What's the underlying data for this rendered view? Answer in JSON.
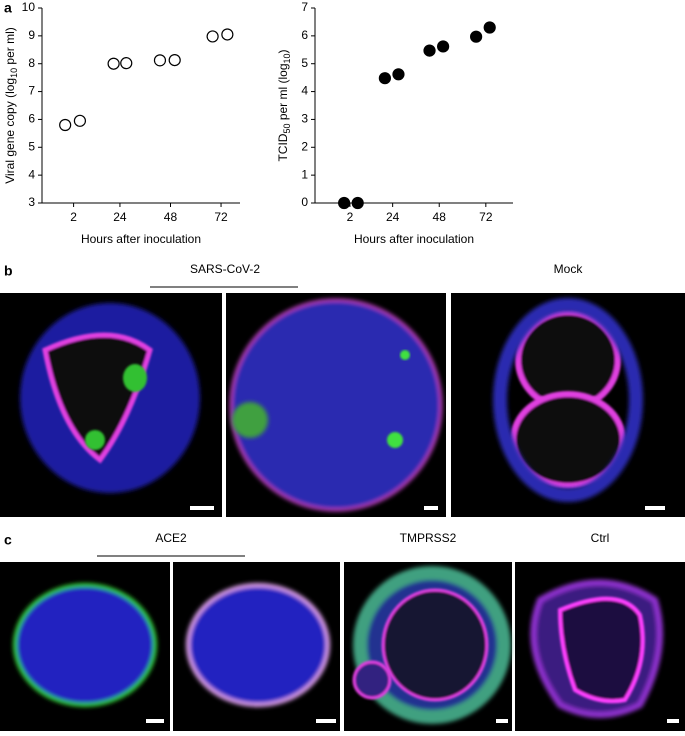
{
  "chart_data": [
    {
      "type": "scatter",
      "panel": "a",
      "ylabel": [
        "Viral gene copy (log",
        "10",
        " per ml)"
      ],
      "xlabel": "Hours after inoculation",
      "x": [
        -2,
        5,
        21,
        27,
        43,
        50,
        68,
        75
      ],
      "values": [
        5.8,
        5.95,
        8.0,
        8.02,
        8.12,
        8.13,
        8.98,
        9.05
      ],
      "color": "#000000",
      "filled": false,
      "xlim": [
        -13,
        81
      ],
      "xticks": [
        2,
        24,
        48,
        72
      ],
      "ylim": [
        3,
        10
      ],
      "yticks": [
        3,
        4,
        5,
        6,
        7,
        8,
        9,
        10
      ]
    },
    {
      "type": "scatter",
      "ylabel": [
        "TCID",
        "50",
        " per ml (log",
        "10",
        ")"
      ],
      "xlabel": "Hours after inoculation",
      "x": [
        -1,
        6,
        20,
        27,
        43,
        50,
        67,
        74
      ],
      "values": [
        0,
        0,
        4.48,
        4.62,
        5.47,
        5.62,
        5.97,
        6.3
      ],
      "color": "#000000",
      "filled": true,
      "xlim": [
        -16,
        86
      ],
      "xticks": [
        2,
        24,
        48,
        72
      ],
      "ylim": [
        0,
        7
      ],
      "yticks": [
        0,
        1,
        2,
        3,
        4,
        5,
        6,
        7
      ]
    }
  ],
  "panels": {
    "b": {
      "label": "b",
      "headers": [
        "SARS-CoV-2",
        "Mock"
      ]
    },
    "c": {
      "label": "c",
      "headers": [
        "ACE2",
        "TMPRSS2",
        "Ctrl"
      ]
    }
  }
}
